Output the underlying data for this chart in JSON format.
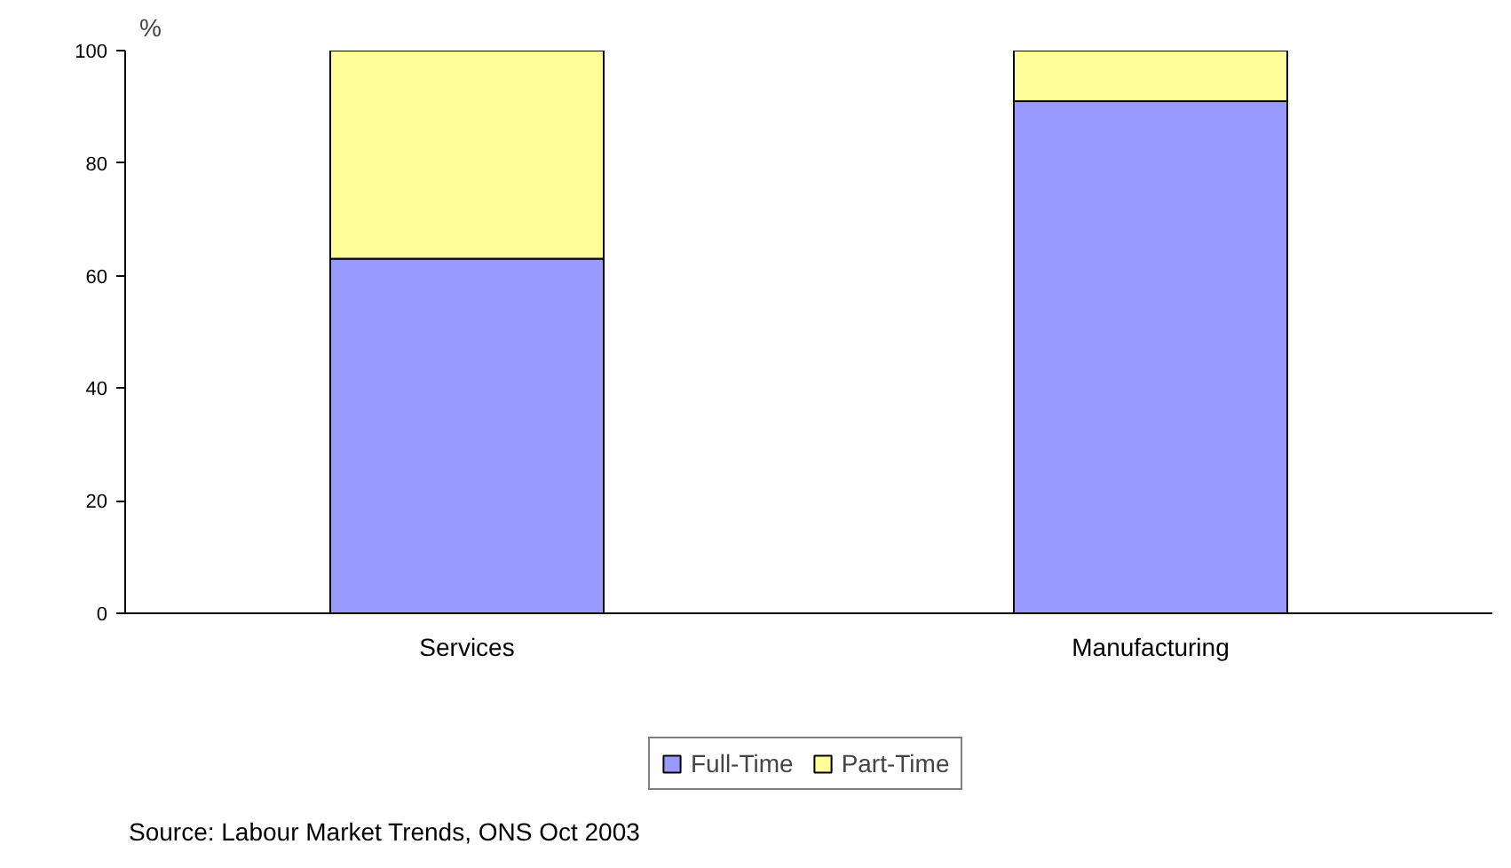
{
  "chart_data": {
    "type": "bar",
    "stacked": true,
    "ylabel": "%",
    "categories": [
      "Services",
      "Manufacturing"
    ],
    "series": [
      {
        "name": "Full-Time",
        "color": "#9999ff",
        "values": [
          63,
          91
        ]
      },
      {
        "name": "Part-Time",
        "color": "#ffff99",
        "values": [
          37,
          9
        ]
      }
    ],
    "ylim": [
      0,
      100
    ],
    "yticks": [
      0,
      20,
      40,
      60,
      80,
      100
    ],
    "grid": false,
    "legend": "bottom",
    "annotations": [
      "Source: Labour Market Trends, ONS Oct 2003"
    ]
  }
}
